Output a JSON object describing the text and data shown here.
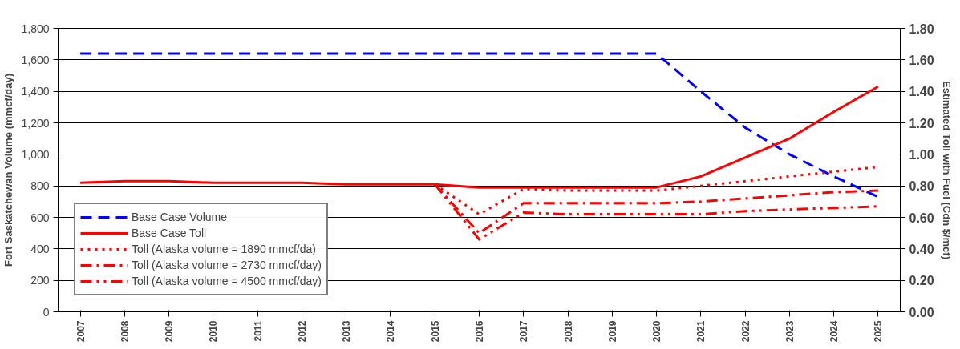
{
  "chart_data": {
    "type": "line",
    "ylabel": "Fort Saskatchewan Volume (mmcf/day)",
    "y2label": "Estimated Toll with Fuel (Cdn $/mcf)",
    "categories": [
      "2007",
      "2008",
      "2009",
      "2010",
      "2011",
      "2012",
      "2013",
      "2014",
      "2015",
      "2016",
      "2017",
      "2018",
      "2019",
      "2020",
      "2021",
      "2022",
      "2023",
      "2024",
      "2025"
    ],
    "series": [
      {
        "name": "Base Case Volume",
        "color": "#0000ff",
        "line_style": "dashed",
        "values": [
          1640,
          1640,
          1640,
          1640,
          1640,
          1640,
          1640,
          1640,
          1640,
          1640,
          1640,
          1640,
          1640,
          1640,
          1400,
          1170,
          1000,
          860,
          730
        ]
      },
      {
        "name": "Base Case Toll",
        "color": "#ff0000",
        "line_style": "solid",
        "axis": "y2",
        "values": [
          0.82,
          0.83,
          0.83,
          0.82,
          0.82,
          0.82,
          0.81,
          0.81,
          0.81,
          0.79,
          0.79,
          0.79,
          0.79,
          0.79,
          0.86,
          0.98,
          1.1,
          1.27,
          1.43
        ]
      },
      {
        "name": "Toll (Alaska volume = 1890 mmcf/da)",
        "color": "#ff0000",
        "line_style": "dotted",
        "axis": "y2",
        "values": [
          null,
          null,
          null,
          null,
          null,
          null,
          null,
          null,
          0.81,
          0.62,
          0.78,
          0.77,
          0.77,
          0.77,
          0.8,
          0.83,
          0.86,
          0.89,
          0.92
        ]
      },
      {
        "name": "Toll (Alaska volume = 2730 mmcf/day)",
        "color": "#ff0000",
        "line_style": "dashdot",
        "axis": "y2",
        "values": [
          null,
          null,
          null,
          null,
          null,
          null,
          null,
          null,
          0.81,
          0.5,
          0.69,
          0.69,
          0.69,
          0.69,
          0.7,
          0.72,
          0.74,
          0.76,
          0.77
        ]
      },
      {
        "name": "Toll (Alaska volume = 4500 mmcf/day)",
        "color": "#ff0000",
        "line_style": "dashdotdot",
        "axis": "y2",
        "values": [
          null,
          null,
          null,
          null,
          null,
          null,
          null,
          null,
          0.81,
          0.46,
          0.63,
          0.62,
          0.62,
          0.62,
          0.62,
          0.64,
          0.65,
          0.66,
          0.67
        ]
      }
    ],
    "ylim": [
      0,
      1800
    ],
    "yticks": [
      {
        "value": 0,
        "label": "0"
      },
      {
        "value": 200,
        "label": "200"
      },
      {
        "value": 400,
        "label": "400"
      },
      {
        "value": 600,
        "label": "600"
      },
      {
        "value": 800,
        "label": "800"
      },
      {
        "value": 1000,
        "label": "1,000"
      },
      {
        "value": 1200,
        "label": "1,200"
      },
      {
        "value": 1400,
        "label": "1,400"
      },
      {
        "value": 1600,
        "label": "1,600"
      },
      {
        "value": 1800,
        "label": "1,800"
      }
    ],
    "y2lim": [
      0,
      1.8
    ],
    "y2ticks": [
      {
        "value": 0,
        "label": "0.00"
      },
      {
        "value": 0.2,
        "label": "0.20"
      },
      {
        "value": 0.4,
        "label": "0.40"
      },
      {
        "value": 0.6,
        "label": "0.60"
      },
      {
        "value": 0.8,
        "label": "0.80"
      },
      {
        "value": 1.0,
        "label": "1.00"
      },
      {
        "value": 1.2,
        "label": "1.20"
      },
      {
        "value": 1.4,
        "label": "1.40"
      },
      {
        "value": 1.6,
        "label": "1.60"
      },
      {
        "value": 1.8,
        "label": "1.80"
      }
    ],
    "grid": "y",
    "legend": "bottom left"
  }
}
